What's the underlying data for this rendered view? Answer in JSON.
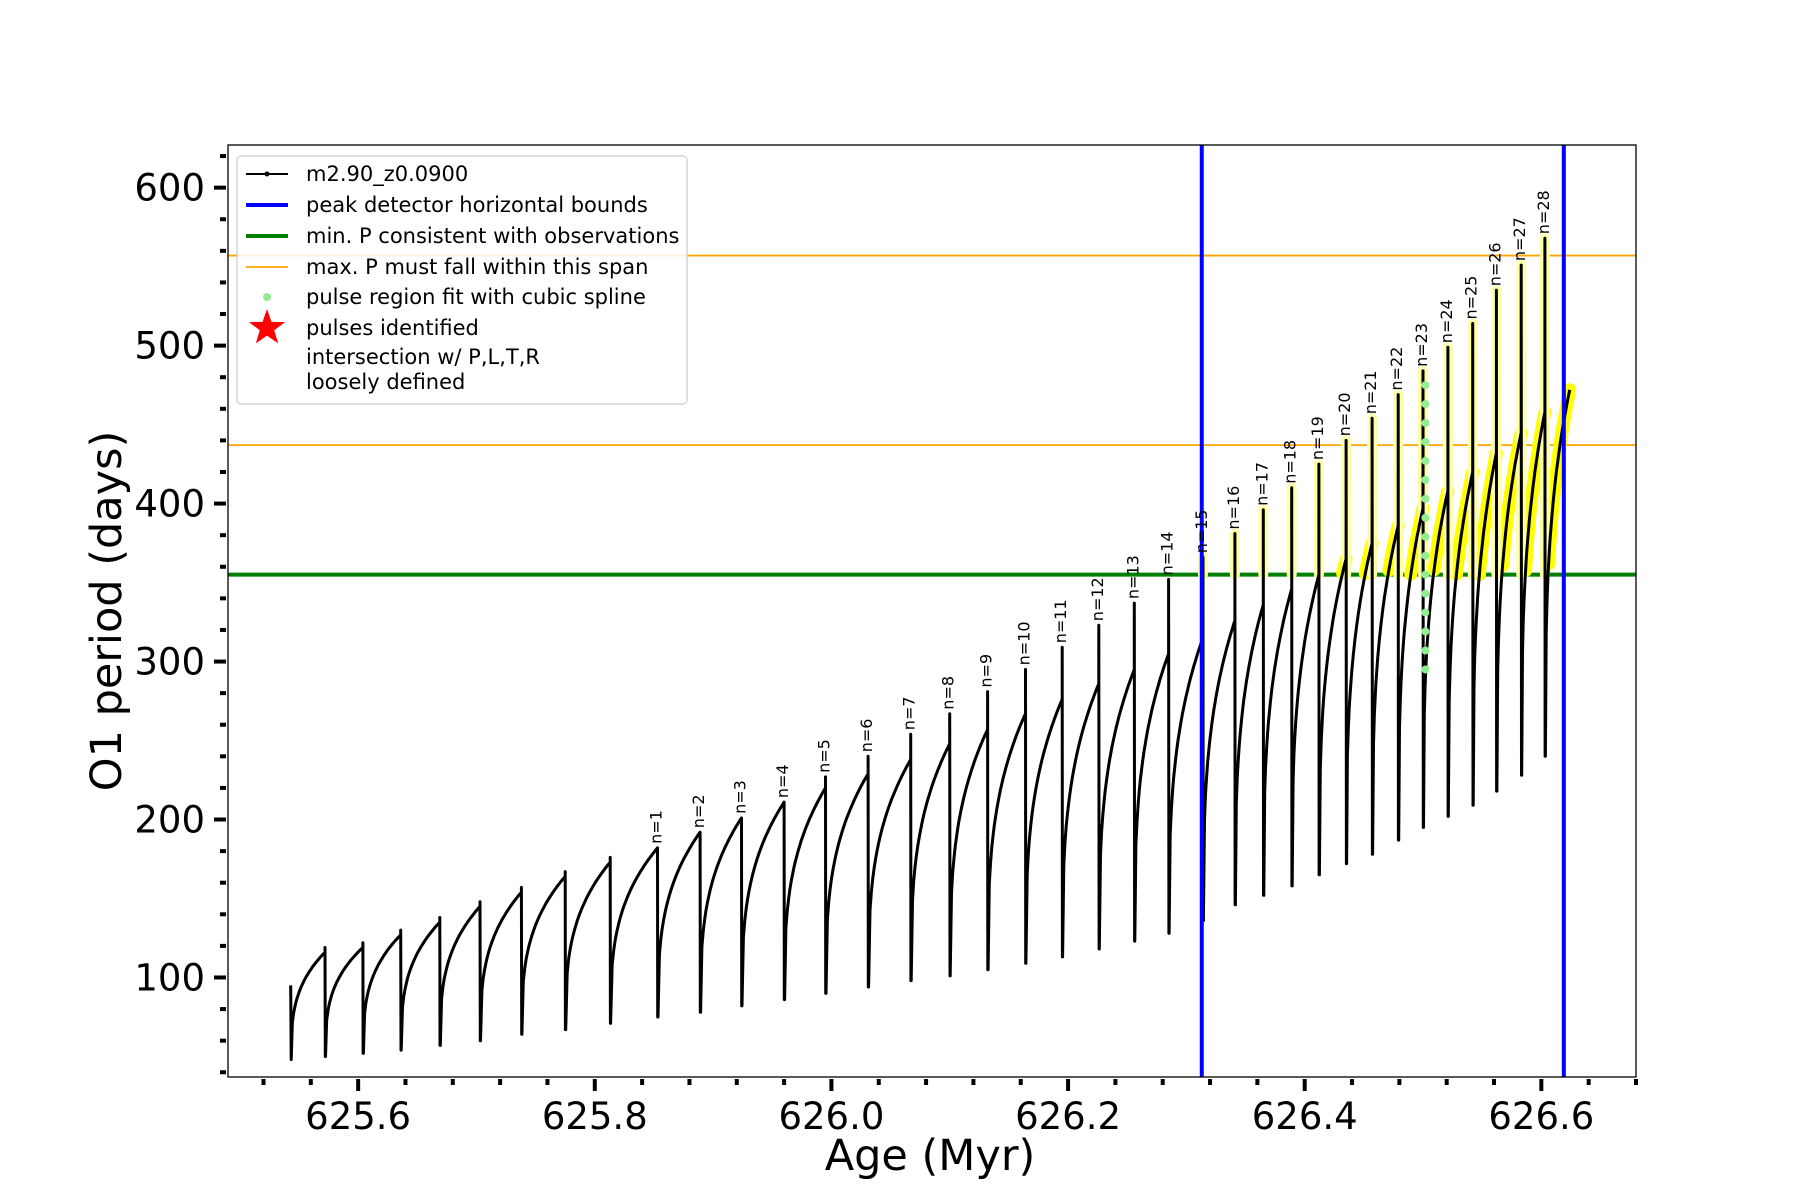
{
  "chart_data": {
    "type": "line",
    "title": "",
    "xlabel": "Age (Myr)",
    "ylabel": "O1 period (days)",
    "xlim": [
      625.49,
      626.68
    ],
    "ylim": [
      37,
      627
    ],
    "xticks": [
      625.6,
      625.8,
      626.0,
      626.2,
      626.4,
      626.6
    ],
    "xtick_labels": [
      "625.6",
      "625.8",
      "626.0",
      "626.2",
      "626.4",
      "626.6"
    ],
    "yticks": [
      100,
      200,
      300,
      400,
      500,
      600
    ],
    "ytick_labels": [
      "100",
      "200",
      "300",
      "400",
      "500",
      "600"
    ],
    "grid": false,
    "legend_position": "top-left",
    "colors": {
      "track": "#000000",
      "bounds": "#0000ff",
      "min_period": "#007f00",
      "max_span": "#ffa500",
      "spline": "#90ee90",
      "pulses": "#ff0000",
      "intersection": "#ffff00",
      "loose": "#ffffaa"
    },
    "legend": [
      {
        "key": "track",
        "label": "m2.90_z0.0900"
      },
      {
        "key": "bounds",
        "label": "peak detector horizontal bounds"
      },
      {
        "key": "min_period",
        "label": "min. P consistent with observations"
      },
      {
        "key": "max_span",
        "label": "max. P must fall within this span"
      },
      {
        "key": "spline",
        "label": "pulse region fit with cubic spline"
      },
      {
        "key": "pulses",
        "label": "pulses identified"
      },
      {
        "key": "intersection",
        "label": "intersection w/ P,L,T,R"
      },
      {
        "key": "loose",
        "label": "loosely defined"
      }
    ],
    "vertical_bounds": [
      626.313,
      626.619
    ],
    "min_period_line": 355,
    "max_period_span": [
      437,
      557
    ],
    "track": {
      "name": "m2.90_z0.0900",
      "start": {
        "x": 625.543,
        "y": 95
      },
      "cycles": [
        {
          "x_end": 625.572,
          "min": 48,
          "max": 116
        },
        {
          "x_end": 625.604,
          "min": 50,
          "max": 119
        },
        {
          "x_end": 625.636,
          "min": 52,
          "max": 127
        },
        {
          "x_end": 625.669,
          "min": 54,
          "max": 135
        },
        {
          "x_end": 625.703,
          "min": 57,
          "max": 145
        },
        {
          "x_end": 625.738,
          "min": 60,
          "max": 154
        },
        {
          "x_end": 625.775,
          "min": 64,
          "max": 164
        },
        {
          "x_end": 625.813,
          "min": 67,
          "max": 173
        },
        {
          "x_end": 625.853,
          "min": 71,
          "max": 182
        },
        {
          "x_end": 625.889,
          "min": 75,
          "max": 192
        },
        {
          "x_end": 625.924,
          "min": 78,
          "max": 201
        },
        {
          "x_end": 625.96,
          "min": 82,
          "max": 211
        },
        {
          "x_end": 625.995,
          "min": 86,
          "max": 220
        },
        {
          "x_end": 626.031,
          "min": 90,
          "max": 229
        },
        {
          "x_end": 626.067,
          "min": 94,
          "max": 238
        },
        {
          "x_end": 626.1,
          "min": 98,
          "max": 248
        },
        {
          "x_end": 626.132,
          "min": 101,
          "max": 257
        },
        {
          "x_end": 626.164,
          "min": 105,
          "max": 267
        },
        {
          "x_end": 626.195,
          "min": 109,
          "max": 276
        },
        {
          "x_end": 626.226,
          "min": 113,
          "max": 286
        },
        {
          "x_end": 626.256,
          "min": 118,
          "max": 295
        },
        {
          "x_end": 626.285,
          "min": 123,
          "max": 305
        },
        {
          "x_end": 626.314,
          "min": 128,
          "max": 315
        },
        {
          "x_end": 626.341,
          "min": 136,
          "max": 326
        },
        {
          "x_end": 626.365,
          "min": 146,
          "max": 336
        },
        {
          "x_end": 626.389,
          "min": 152,
          "max": 346
        },
        {
          "x_end": 626.412,
          "min": 158,
          "max": 355
        },
        {
          "x_end": 626.435,
          "min": 165,
          "max": 365
        },
        {
          "x_end": 626.457,
          "min": 172,
          "max": 375
        },
        {
          "x_end": 626.479,
          "min": 178,
          "max": 386
        },
        {
          "x_end": 626.5,
          "min": 187,
          "max": 397
        },
        {
          "x_end": 626.521,
          "min": 195,
          "max": 408
        },
        {
          "x_end": 626.542,
          "min": 202,
          "max": 420
        },
        {
          "x_end": 626.562,
          "min": 209,
          "max": 432
        },
        {
          "x_end": 626.583,
          "min": 218,
          "max": 445
        },
        {
          "x_end": 626.603,
          "min": 228,
          "max": 458
        },
        {
          "x_end": 626.624,
          "min": 240,
          "max": 472
        }
      ]
    },
    "pulses": [
      {
        "label": "n=1",
        "x": 625.853,
        "y": 182
      },
      {
        "label": "n=2",
        "x": 625.889,
        "y": 192
      },
      {
        "label": "n=3",
        "x": 625.924,
        "y": 201
      },
      {
        "label": "n=4",
        "x": 625.96,
        "y": 211
      },
      {
        "label": "n=5",
        "x": 625.995,
        "y": 227
      },
      {
        "label": "n=6",
        "x": 626.031,
        "y": 240
      },
      {
        "label": "n=7",
        "x": 626.067,
        "y": 254
      },
      {
        "label": "n=8",
        "x": 626.1,
        "y": 267
      },
      {
        "label": "n=9",
        "x": 626.132,
        "y": 281
      },
      {
        "label": "n=10",
        "x": 626.164,
        "y": 295
      },
      {
        "label": "n=11",
        "x": 626.195,
        "y": 309
      },
      {
        "label": "n=12",
        "x": 626.226,
        "y": 323
      },
      {
        "label": "n=13",
        "x": 626.256,
        "y": 337
      },
      {
        "label": "n=14",
        "x": 626.285,
        "y": 352
      },
      {
        "label": "n=15",
        "x": 626.314,
        "y": 366
      },
      {
        "label": "n=16",
        "x": 626.341,
        "y": 381
      },
      {
        "label": "n=17",
        "x": 626.365,
        "y": 396
      },
      {
        "label": "n=18",
        "x": 626.389,
        "y": 410
      },
      {
        "label": "n=19",
        "x": 626.412,
        "y": 425
      },
      {
        "label": "n=20",
        "x": 626.435,
        "y": 440
      },
      {
        "label": "n=21",
        "x": 626.457,
        "y": 454
      },
      {
        "label": "n=22",
        "x": 626.479,
        "y": 469
      },
      {
        "label": "n=23",
        "x": 626.5,
        "y": 484
      },
      {
        "label": "n=24",
        "x": 626.521,
        "y": 499
      },
      {
        "label": "n=25",
        "x": 626.542,
        "y": 514
      },
      {
        "label": "n=26",
        "x": 626.562,
        "y": 535
      },
      {
        "label": "n=27",
        "x": 626.583,
        "y": 551
      },
      {
        "label": "n=28",
        "x": 626.603,
        "y": 568
      }
    ],
    "spline_region": {
      "x": 626.502,
      "y_range": [
        295,
        480
      ]
    }
  }
}
